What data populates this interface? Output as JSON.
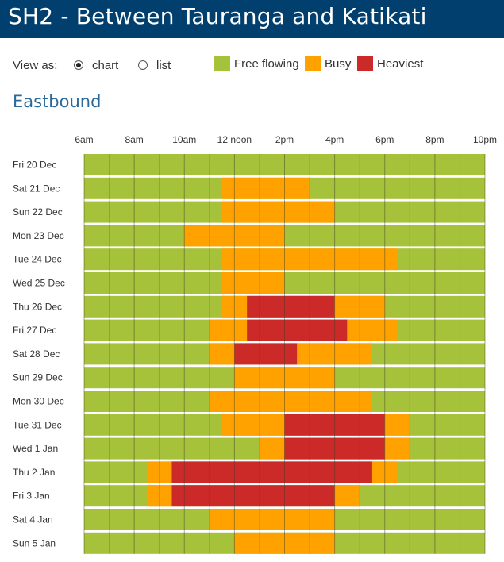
{
  "page": {
    "title": "SH2 - Between Tauranga and Katikati",
    "view_as_label": "View as:",
    "view_options": [
      {
        "label": "chart",
        "selected": true
      },
      {
        "label": "list",
        "selected": false
      }
    ],
    "legend": [
      {
        "label": "Free flowing",
        "color": "#a6c13a"
      },
      {
        "label": "Busy",
        "color": "#ffa200"
      },
      {
        "label": "Heaviest",
        "color": "#cc2a29"
      }
    ],
    "direction": "Eastbound"
  },
  "chart_data": {
    "type": "timeline",
    "title": "Eastbound",
    "x_range_hours": [
      6,
      22
    ],
    "x_ticks": [
      {
        "hour": 6,
        "label": "6am"
      },
      {
        "hour": 8,
        "label": "8am"
      },
      {
        "hour": 10,
        "label": "10am"
      },
      {
        "hour": 12,
        "label": "12 noon"
      },
      {
        "hour": 14,
        "label": "2pm"
      },
      {
        "hour": 16,
        "label": "4pm"
      },
      {
        "hour": 18,
        "label": "6pm"
      },
      {
        "hour": 20,
        "label": "8pm"
      },
      {
        "hour": 22,
        "label": "10pm"
      }
    ],
    "categories": {
      "free": {
        "label": "Free flowing",
        "color": "#a6c13a"
      },
      "busy": {
        "label": "Busy",
        "color": "#ffa200"
      },
      "heavy": {
        "label": "Heaviest",
        "color": "#cc2a29"
      }
    },
    "days": [
      {
        "label": "Fri 20 Dec",
        "segments": []
      },
      {
        "label": "Sat 21 Dec",
        "segments": [
          {
            "start": 11.5,
            "end": 15,
            "level": "busy"
          }
        ]
      },
      {
        "label": "Sun 22 Dec",
        "segments": [
          {
            "start": 11.5,
            "end": 16,
            "level": "busy"
          }
        ]
      },
      {
        "label": "Mon 23 Dec",
        "segments": [
          {
            "start": 10,
            "end": 14,
            "level": "busy"
          }
        ]
      },
      {
        "label": "Tue 24 Dec",
        "segments": [
          {
            "start": 11.5,
            "end": 18.5,
            "level": "busy"
          }
        ]
      },
      {
        "label": "Wed 25 Dec",
        "segments": [
          {
            "start": 11.5,
            "end": 14,
            "level": "busy"
          }
        ]
      },
      {
        "label": "Thu 26 Dec",
        "segments": [
          {
            "start": 11.5,
            "end": 12.5,
            "level": "busy"
          },
          {
            "start": 12.5,
            "end": 16,
            "level": "heavy"
          },
          {
            "start": 16,
            "end": 18,
            "level": "busy"
          }
        ]
      },
      {
        "label": "Fri 27 Dec",
        "segments": [
          {
            "start": 11,
            "end": 12.5,
            "level": "busy"
          },
          {
            "start": 12.5,
            "end": 16.5,
            "level": "heavy"
          },
          {
            "start": 16.5,
            "end": 18.5,
            "level": "busy"
          }
        ]
      },
      {
        "label": "Sat 28 Dec",
        "segments": [
          {
            "start": 11,
            "end": 12,
            "level": "busy"
          },
          {
            "start": 12,
            "end": 14.5,
            "level": "heavy"
          },
          {
            "start": 14.5,
            "end": 17.5,
            "level": "busy"
          }
        ]
      },
      {
        "label": "Sun 29 Dec",
        "segments": [
          {
            "start": 12,
            "end": 16,
            "level": "busy"
          }
        ]
      },
      {
        "label": "Mon 30 Dec",
        "segments": [
          {
            "start": 11,
            "end": 17.5,
            "level": "busy"
          }
        ]
      },
      {
        "label": "Tue 31 Dec",
        "segments": [
          {
            "start": 11.5,
            "end": 14,
            "level": "busy"
          },
          {
            "start": 14,
            "end": 18,
            "level": "heavy"
          },
          {
            "start": 18,
            "end": 19,
            "level": "busy"
          }
        ]
      },
      {
        "label": "Wed 1 Jan",
        "segments": [
          {
            "start": 13,
            "end": 14,
            "level": "busy"
          },
          {
            "start": 14,
            "end": 18,
            "level": "heavy"
          },
          {
            "start": 18,
            "end": 19,
            "level": "busy"
          }
        ]
      },
      {
        "label": "Thu 2 Jan",
        "segments": [
          {
            "start": 8.5,
            "end": 9.5,
            "level": "busy"
          },
          {
            "start": 9.5,
            "end": 17.5,
            "level": "heavy"
          },
          {
            "start": 17.5,
            "end": 18.5,
            "level": "busy"
          }
        ]
      },
      {
        "label": "Fri 3 Jan",
        "segments": [
          {
            "start": 8.5,
            "end": 9.5,
            "level": "busy"
          },
          {
            "start": 9.5,
            "end": 16,
            "level": "heavy"
          },
          {
            "start": 16,
            "end": 17,
            "level": "busy"
          }
        ]
      },
      {
        "label": "Sat 4 Jan",
        "segments": [
          {
            "start": 11,
            "end": 16,
            "level": "busy"
          }
        ]
      },
      {
        "label": "Sun 5 Jan",
        "segments": [
          {
            "start": 12,
            "end": 16,
            "level": "busy"
          }
        ]
      }
    ]
  }
}
